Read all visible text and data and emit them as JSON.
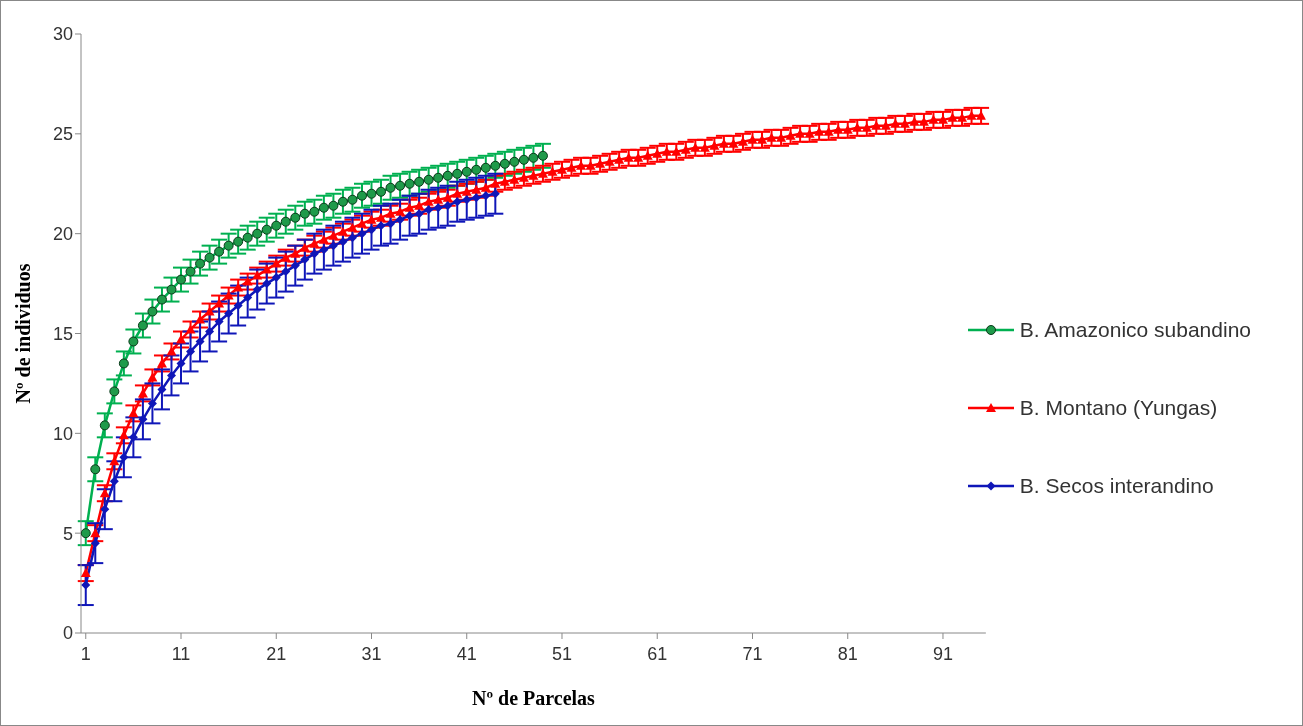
{
  "chart_data": {
    "type": "line",
    "xlabel": "Nº de Parcelas",
    "ylabel": "Nº de individuos",
    "xlim": [
      0.5,
      95.5
    ],
    "xticks": [
      1,
      11,
      21,
      31,
      41,
      51,
      61,
      71,
      81,
      91
    ],
    "ylim": [
      0,
      30
    ],
    "yticks": [
      0,
      5,
      10,
      15,
      20,
      25,
      30
    ],
    "grid": false,
    "legend": "right",
    "series": [
      {
        "name": "B. Amazonico subandino",
        "color": "#00b050",
        "marker": "circle",
        "x": [
          1,
          2,
          3,
          4,
          5,
          6,
          7,
          8,
          9,
          10,
          11,
          12,
          13,
          14,
          15,
          16,
          17,
          18,
          19,
          20,
          21,
          22,
          23,
          24,
          25,
          26,
          27,
          28,
          29,
          30,
          31,
          32,
          33,
          34,
          35,
          36,
          37,
          38,
          39,
          40,
          41,
          42,
          43,
          44,
          45,
          46,
          47,
          48,
          49
        ],
        "values": [
          5.0,
          8.2,
          10.4,
          12.1,
          13.5,
          14.6,
          15.4,
          16.1,
          16.7,
          17.2,
          17.7,
          18.1,
          18.5,
          18.8,
          19.1,
          19.4,
          19.6,
          19.8,
          20.0,
          20.2,
          20.4,
          20.6,
          20.8,
          21.0,
          21.1,
          21.3,
          21.4,
          21.6,
          21.7,
          21.9,
          22.0,
          22.1,
          22.3,
          22.4,
          22.5,
          22.6,
          22.7,
          22.8,
          22.9,
          23.0,
          23.1,
          23.2,
          23.3,
          23.4,
          23.5,
          23.6,
          23.7,
          23.8,
          23.9
        ],
        "errors": [
          0.6,
          0.6,
          0.6,
          0.6,
          0.6,
          0.6,
          0.6,
          0.6,
          0.6,
          0.6,
          0.6,
          0.6,
          0.6,
          0.6,
          0.6,
          0.6,
          0.6,
          0.6,
          0.6,
          0.6,
          0.6,
          0.6,
          0.6,
          0.6,
          0.6,
          0.6,
          0.6,
          0.6,
          0.6,
          0.6,
          0.6,
          0.6,
          0.6,
          0.6,
          0.6,
          0.6,
          0.6,
          0.6,
          0.6,
          0.6,
          0.6,
          0.6,
          0.6,
          0.6,
          0.6,
          0.6,
          0.6,
          0.6,
          0.6
        ]
      },
      {
        "name": "B. Montano (Yungas)",
        "color": "#ff0000",
        "marker": "triangle",
        "x": [
          1,
          2,
          3,
          4,
          5,
          6,
          7,
          8,
          9,
          10,
          11,
          12,
          13,
          14,
          15,
          16,
          17,
          18,
          19,
          20,
          21,
          22,
          23,
          24,
          25,
          26,
          27,
          28,
          29,
          30,
          31,
          32,
          33,
          34,
          35,
          36,
          37,
          38,
          39,
          40,
          41,
          42,
          43,
          44,
          45,
          46,
          47,
          48,
          49,
          50,
          51,
          52,
          53,
          54,
          55,
          56,
          57,
          58,
          59,
          60,
          61,
          62,
          63,
          64,
          65,
          66,
          67,
          68,
          69,
          70,
          71,
          72,
          73,
          74,
          75,
          76,
          77,
          78,
          79,
          80,
          81,
          82,
          83,
          84,
          85,
          86,
          87,
          88,
          89,
          90,
          91,
          92,
          93,
          94,
          95
        ],
        "values": [
          3.0,
          5.0,
          7.0,
          8.6,
          9.9,
          11.0,
          12.0,
          12.8,
          13.5,
          14.1,
          14.7,
          15.2,
          15.7,
          16.1,
          16.5,
          16.9,
          17.3,
          17.6,
          17.9,
          18.2,
          18.5,
          18.8,
          19.0,
          19.3,
          19.5,
          19.7,
          19.9,
          20.1,
          20.3,
          20.5,
          20.7,
          20.8,
          21.0,
          21.1,
          21.3,
          21.4,
          21.6,
          21.7,
          21.8,
          22.0,
          22.1,
          22.2,
          22.3,
          22.5,
          22.6,
          22.7,
          22.8,
          22.9,
          23.0,
          23.1,
          23.2,
          23.3,
          23.4,
          23.4,
          23.5,
          23.6,
          23.7,
          23.8,
          23.8,
          23.9,
          24.0,
          24.1,
          24.1,
          24.2,
          24.3,
          24.3,
          24.4,
          24.5,
          24.5,
          24.6,
          24.7,
          24.7,
          24.8,
          24.8,
          24.9,
          25.0,
          25.0,
          25.1,
          25.1,
          25.2,
          25.2,
          25.3,
          25.3,
          25.4,
          25.4,
          25.5,
          25.5,
          25.6,
          25.6,
          25.7,
          25.7,
          25.8,
          25.8,
          25.9,
          25.9
        ],
        "errors": [
          0.4,
          0.4,
          0.4,
          0.4,
          0.4,
          0.4,
          0.4,
          0.4,
          0.4,
          0.4,
          0.4,
          0.4,
          0.4,
          0.4,
          0.4,
          0.4,
          0.4,
          0.4,
          0.4,
          0.4,
          0.4,
          0.4,
          0.4,
          0.4,
          0.4,
          0.4,
          0.4,
          0.4,
          0.4,
          0.4,
          0.4,
          0.4,
          0.4,
          0.4,
          0.4,
          0.4,
          0.4,
          0.4,
          0.4,
          0.4,
          0.4,
          0.4,
          0.4,
          0.4,
          0.4,
          0.4,
          0.4,
          0.4,
          0.4,
          0.4,
          0.4,
          0.4,
          0.4,
          0.4,
          0.4,
          0.4,
          0.4,
          0.4,
          0.4,
          0.4,
          0.4,
          0.4,
          0.4,
          0.4,
          0.4,
          0.4,
          0.4,
          0.4,
          0.4,
          0.4,
          0.4,
          0.4,
          0.4,
          0.4,
          0.4,
          0.4,
          0.4,
          0.4,
          0.4,
          0.4,
          0.4,
          0.4,
          0.4,
          0.4,
          0.4,
          0.4,
          0.4,
          0.4,
          0.4,
          0.4,
          0.4,
          0.4,
          0.4,
          0.4,
          0.4
        ]
      },
      {
        "name": "B. Secos interandino",
        "color": "#0f16b8",
        "marker": "diamond",
        "x": [
          1,
          2,
          3,
          4,
          5,
          6,
          7,
          8,
          9,
          10,
          11,
          12,
          13,
          14,
          15,
          16,
          17,
          18,
          19,
          20,
          21,
          22,
          23,
          24,
          25,
          26,
          27,
          28,
          29,
          30,
          31,
          32,
          33,
          34,
          35,
          36,
          37,
          38,
          39,
          40,
          41,
          42,
          43,
          44
        ],
        "values": [
          2.4,
          4.5,
          6.2,
          7.6,
          8.8,
          9.8,
          10.7,
          11.5,
          12.2,
          12.9,
          13.5,
          14.1,
          14.6,
          15.1,
          15.6,
          16.0,
          16.4,
          16.8,
          17.2,
          17.5,
          17.8,
          18.1,
          18.4,
          18.7,
          19.0,
          19.2,
          19.4,
          19.6,
          19.8,
          20.0,
          20.2,
          20.4,
          20.5,
          20.7,
          20.9,
          21.0,
          21.2,
          21.3,
          21.4,
          21.6,
          21.7,
          21.8,
          21.9,
          22.0
        ],
        "errors": [
          1.0,
          1.0,
          1.0,
          1.0,
          1.0,
          1.0,
          1.0,
          1.0,
          1.0,
          1.0,
          1.0,
          1.0,
          1.0,
          1.0,
          1.0,
          1.0,
          1.0,
          1.0,
          1.0,
          1.0,
          1.0,
          1.0,
          1.0,
          1.0,
          1.0,
          1.0,
          1.0,
          1.0,
          1.0,
          1.0,
          1.0,
          1.0,
          1.0,
          1.0,
          1.0,
          1.0,
          1.0,
          1.0,
          1.0,
          1.0,
          1.0,
          1.0,
          1.0,
          1.0
        ]
      }
    ]
  }
}
